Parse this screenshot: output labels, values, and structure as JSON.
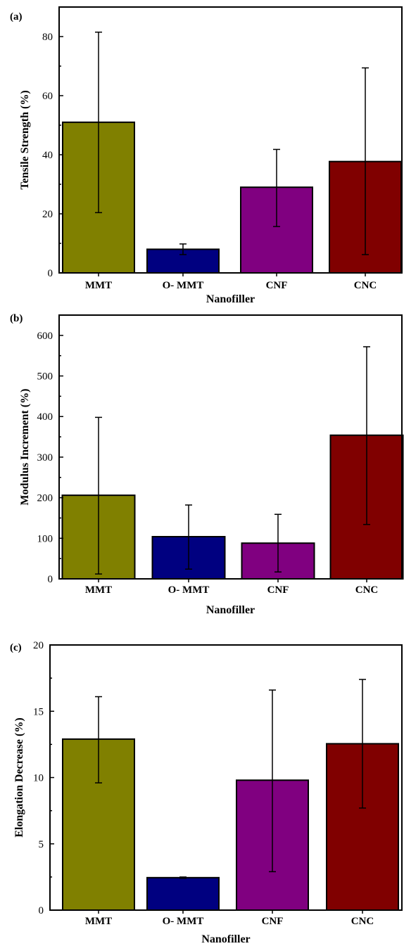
{
  "colors": {
    "MMT": "#808000",
    "O- MMT": "#000080",
    "CNF": "#800080",
    "CNC": "#800000"
  },
  "chart_data": [
    {
      "type": "bar",
      "panel_label": "(a)",
      "categories": [
        "MMT",
        "O- MMT",
        "CNF",
        "CNC"
      ],
      "values": [
        51,
        8,
        29,
        37.7
      ],
      "error_low": [
        20.4,
        6.2,
        15.7,
        6.2
      ],
      "error_high": [
        81.5,
        9.8,
        41.8,
        69.4
      ],
      "xlabel": "Nanofiller",
      "ylabel": "Tensile Strength (%)",
      "ylim": [
        0,
        90
      ],
      "yticks": [
        0,
        20,
        40,
        60,
        80
      ],
      "ytick_labels": [
        "0",
        "20",
        "40",
        "60",
        "80"
      ],
      "grid": false
    },
    {
      "type": "bar",
      "panel_label": "(b)",
      "categories": [
        "MMT",
        "O- MMT",
        "CNF",
        "CNC"
      ],
      "values": [
        206,
        104,
        88,
        354
      ],
      "error_low": [
        12,
        24,
        17,
        134
      ],
      "error_high": [
        398,
        182,
        159,
        572
      ],
      "xlabel": "Nanofiller",
      "ylabel": "Modulus Increment (%)",
      "ylim": [
        0,
        650
      ],
      "yticks": [
        0,
        100,
        200,
        300,
        400,
        500,
        600
      ],
      "ytick_labels": [
        "0",
        "100",
        "200",
        "300",
        "400",
        "500",
        "600"
      ],
      "grid": false
    },
    {
      "type": "bar",
      "panel_label": "(c)",
      "categories": [
        "MMT",
        "O- MMT",
        "CNF",
        "CNC"
      ],
      "values": [
        12.9,
        2.45,
        9.8,
        12.55
      ],
      "error_low": [
        9.6,
        2.4,
        2.9,
        7.7
      ],
      "error_high": [
        16.1,
        2.5,
        16.6,
        17.4
      ],
      "xlabel": "Nanofiller",
      "ylabel": "Elongation Decrease (%)",
      "ylim": [
        0,
        20
      ],
      "yticks": [
        0,
        5,
        10,
        15,
        20
      ],
      "ytick_labels": [
        "0",
        "5",
        "10",
        "15",
        "20"
      ],
      "grid": false
    }
  ]
}
